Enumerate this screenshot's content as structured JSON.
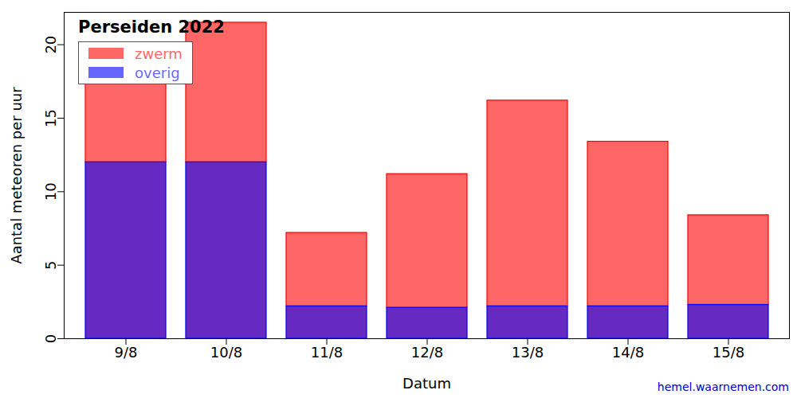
{
  "chart_data": {
    "type": "bar",
    "stacked": true,
    "title": "Perseiden 2022",
    "x_label": "Datum",
    "y_label": "Aantal meteoren per uur",
    "caption": "hemel.waarnemen.com",
    "categories": [
      "9/8",
      "10/8",
      "11/8",
      "12/8",
      "13/8",
      "14/8",
      "15/8"
    ],
    "series": [
      {
        "name": "zwerm",
        "color": "#ff0000",
        "values": [
          5.9,
          9.5,
          5.0,
          9.1,
          14.0,
          11.2,
          6.1
        ]
      },
      {
        "name": "overig",
        "color": "#0000ff",
        "values": [
          12.0,
          12.0,
          2.2,
          2.1,
          2.2,
          2.2,
          2.3
        ]
      }
    ],
    "ylim": [
      0,
      22.2
    ],
    "yticks": [
      0,
      5,
      10,
      15,
      20
    ],
    "grid": false,
    "legend": "top-left"
  }
}
